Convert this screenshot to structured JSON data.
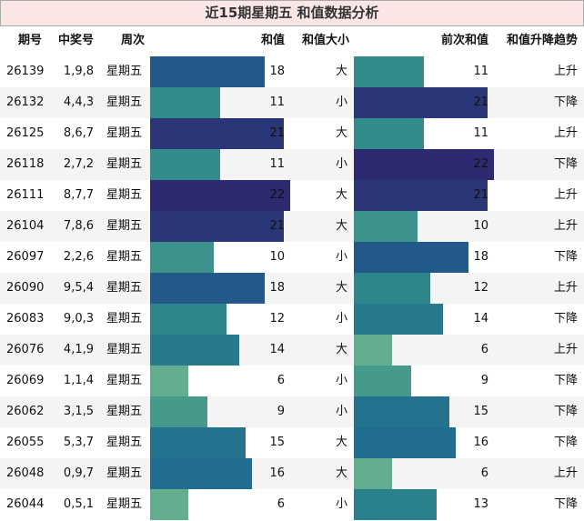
{
  "title": "近15期星期五 和值数据分析",
  "table": {
    "columns": [
      "期号",
      "中奖号",
      "周次",
      "和值",
      "和值大小",
      "前次和值",
      "和值升降趋势"
    ],
    "bar_color_scale": [
      "#63ae8e",
      "#2f8a8b",
      "#1f6990",
      "#2e2a72"
    ],
    "rows": [
      [
        "26139",
        "1,9,8",
        "星期五",
        18,
        "大",
        11,
        "上升"
      ],
      [
        "26132",
        "4,4,3",
        "星期五",
        11,
        "小",
        21,
        "下降"
      ],
      [
        "26125",
        "8,6,7",
        "星期五",
        21,
        "大",
        11,
        "上升"
      ],
      [
        "26118",
        "2,7,2",
        "星期五",
        11,
        "小",
        22,
        "下降"
      ],
      [
        "26111",
        "8,7,7",
        "星期五",
        22,
        "大",
        21,
        "上升"
      ],
      [
        "26104",
        "7,8,6",
        "星期五",
        21,
        "大",
        10,
        "上升"
      ],
      [
        "26097",
        "2,2,6",
        "星期五",
        10,
        "小",
        18,
        "下降"
      ],
      [
        "26090",
        "9,5,4",
        "星期五",
        18,
        "大",
        12,
        "上升"
      ],
      [
        "26083",
        "9,0,3",
        "星期五",
        12,
        "小",
        14,
        "下降"
      ],
      [
        "26076",
        "4,1,9",
        "星期五",
        14,
        "大",
        6,
        "上升"
      ],
      [
        "26069",
        "1,1,4",
        "星期五",
        6,
        "小",
        9,
        "下降"
      ],
      [
        "26062",
        "3,1,5",
        "星期五",
        9,
        "小",
        15,
        "下降"
      ],
      [
        "26055",
        "5,3,7",
        "星期五",
        15,
        "大",
        16,
        "下降"
      ],
      [
        "26048",
        "0,9,7",
        "星期五",
        16,
        "大",
        6,
        "上升"
      ],
      [
        "26044",
        "0,5,1",
        "星期五",
        6,
        "小",
        13,
        "下降"
      ]
    ]
  }
}
